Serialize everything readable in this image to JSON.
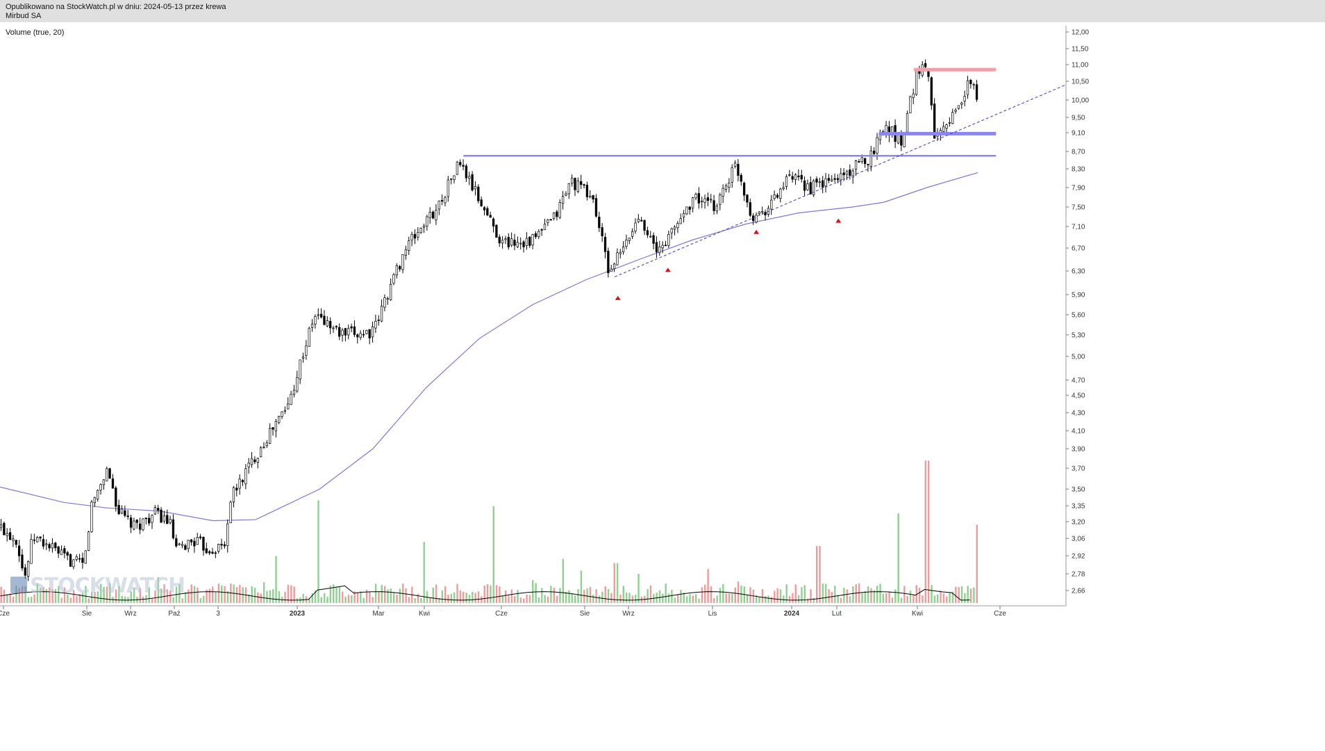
{
  "header": {
    "line1": "Opublikowano na StockWatch.pl w dniu: 2024-05-13 przez krewa",
    "line2": "Mirbud SA"
  },
  "indicator_label": "Volume (true, 20)",
  "watermark": "STOCKWATCH",
  "colors": {
    "candle": "#000000",
    "sma": "#7b78d8",
    "resistance_red": "#f2a0a8",
    "support_blue": "#8a88f0",
    "trendline": "#4848c8",
    "volume_up": "#8fd18f",
    "volume_down": "#f09a9a",
    "marker": "#dd1111"
  },
  "chart_data": {
    "type": "candlestick",
    "y_ticks": [
      "12,00",
      "11,50",
      "11,00",
      "10,50",
      "10,00",
      "9,50",
      "9,10",
      "8,70",
      "8,30",
      "7,90",
      "7,50",
      "7,10",
      "6,70",
      "6,30",
      "5,90",
      "5,60",
      "5,30",
      "5,00",
      "4,70",
      "4,50",
      "4,30",
      "4,10",
      "3,90",
      "3,70",
      "3,50",
      "3,35",
      "3,20",
      "3,06",
      "2,92",
      "2,78",
      "2,66"
    ],
    "x_ticks": [
      {
        "label": "Cze",
        "bold": false
      },
      {
        "label": "Sie",
        "bold": false
      },
      {
        "label": "Wrz",
        "bold": false
      },
      {
        "label": "Paź",
        "bold": false
      },
      {
        "label": "3",
        "bold": false
      },
      {
        "label": "2023",
        "bold": true
      },
      {
        "label": "Mar",
        "bold": false
      },
      {
        "label": "Kwi",
        "bold": false
      },
      {
        "label": "Cze",
        "bold": false
      },
      {
        "label": "Sie",
        "bold": false
      },
      {
        "label": "Wrz",
        "bold": false
      },
      {
        "label": "Lis",
        "bold": false
      },
      {
        "label": "2024",
        "bold": true
      },
      {
        "label": "Lut",
        "bold": false
      },
      {
        "label": "Kwi",
        "bold": false
      },
      {
        "label": "Cze",
        "bold": false
      }
    ],
    "price_path": [
      [
        0,
        3.15
      ],
      [
        0.015,
        3.05
      ],
      [
        0.022,
        2.74
      ],
      [
        0.03,
        3.07
      ],
      [
        0.045,
        3.0
      ],
      [
        0.06,
        2.9
      ],
      [
        0.078,
        2.84
      ],
      [
        0.085,
        3.35
      ],
      [
        0.1,
        3.7
      ],
      [
        0.11,
        3.3
      ],
      [
        0.125,
        3.15
      ],
      [
        0.145,
        3.28
      ],
      [
        0.158,
        3.2
      ],
      [
        0.165,
        2.95
      ],
      [
        0.18,
        3.05
      ],
      [
        0.195,
        2.97
      ],
      [
        0.21,
        3.0
      ],
      [
        0.215,
        3.4
      ],
      [
        0.24,
        3.85
      ],
      [
        0.27,
        4.4
      ],
      [
        0.295,
        5.6
      ],
      [
        0.32,
        5.3
      ],
      [
        0.35,
        5.35
      ],
      [
        0.38,
        6.7
      ],
      [
        0.41,
        7.5
      ],
      [
        0.43,
        8.45
      ],
      [
        0.45,
        7.6
      ],
      [
        0.47,
        6.8
      ],
      [
        0.5,
        6.85
      ],
      [
        0.52,
        7.3
      ],
      [
        0.535,
        8.05
      ],
      [
        0.555,
        7.7
      ],
      [
        0.57,
        6.3
      ],
      [
        0.585,
        6.7
      ],
      [
        0.6,
        7.35
      ],
      [
        0.615,
        6.6
      ],
      [
        0.63,
        7.0
      ],
      [
        0.65,
        7.7
      ],
      [
        0.67,
        7.5
      ],
      [
        0.69,
        8.4
      ],
      [
        0.705,
        7.3
      ],
      [
        0.72,
        7.5
      ],
      [
        0.74,
        8.1
      ],
      [
        0.76,
        7.9
      ],
      [
        0.78,
        8.05
      ],
      [
        0.8,
        8.3
      ],
      [
        0.815,
        8.55
      ],
      [
        0.83,
        9.3
      ],
      [
        0.845,
        8.9
      ],
      [
        0.86,
        10.8
      ],
      [
        0.87,
        11.0
      ],
      [
        0.875,
        9.1
      ],
      [
        0.895,
        9.6
      ],
      [
        0.91,
        10.5
      ],
      [
        0.918,
        10.0
      ]
    ],
    "sma_path": [
      [
        0,
        3.52
      ],
      [
        0.06,
        3.38
      ],
      [
        0.1,
        3.33
      ],
      [
        0.15,
        3.3
      ],
      [
        0.2,
        3.21
      ],
      [
        0.24,
        3.22
      ],
      [
        0.3,
        3.5
      ],
      [
        0.35,
        3.9
      ],
      [
        0.4,
        4.6
      ],
      [
        0.45,
        5.25
      ],
      [
        0.5,
        5.75
      ],
      [
        0.55,
        6.15
      ],
      [
        0.6,
        6.5
      ],
      [
        0.65,
        6.85
      ],
      [
        0.7,
        7.15
      ],
      [
        0.75,
        7.38
      ],
      [
        0.8,
        7.5
      ],
      [
        0.83,
        7.6
      ],
      [
        0.87,
        7.9
      ],
      [
        0.918,
        8.22
      ]
    ],
    "horizontal_levels": [
      {
        "type": "resistance",
        "price": 10.85,
        "x_start": 0.858,
        "x_end": 0.935,
        "color": "#f2a0a8"
      },
      {
        "type": "support",
        "price": 9.08,
        "x_start": 0.825,
        "x_end": 0.935,
        "color": "#8a88f0"
      },
      {
        "type": "resistance_broken",
        "price": 8.6,
        "x_start": 0.435,
        "x_end": 0.935,
        "color": "#8a88f0"
      }
    ],
    "trendline": {
      "x_start": 0.577,
      "y_start": 6.2,
      "x_end": 1.0,
      "y_end": 10.4
    },
    "markers": [
      {
        "x": 0.58,
        "price": 5.85
      },
      {
        "x": 0.627,
        "price": 6.32
      },
      {
        "x": 0.71,
        "price": 7.0
      },
      {
        "x": 0.787,
        "price": 7.22
      }
    ],
    "volume_spikes": [
      {
        "x": 0.298,
        "rel": 0.72
      },
      {
        "x": 0.462,
        "rel": 0.68
      },
      {
        "x": 0.397,
        "rel": 0.43
      },
      {
        "x": 0.258,
        "rel": 0.33
      },
      {
        "x": 0.577,
        "rel": 0.28
      },
      {
        "x": 0.767,
        "rel": 0.4
      },
      {
        "x": 0.842,
        "rel": 0.63
      },
      {
        "x": 0.869,
        "rel": 1.0
      },
      {
        "x": 0.916,
        "rel": 0.55
      },
      {
        "x": 0.527,
        "rel": 0.31
      }
    ]
  }
}
